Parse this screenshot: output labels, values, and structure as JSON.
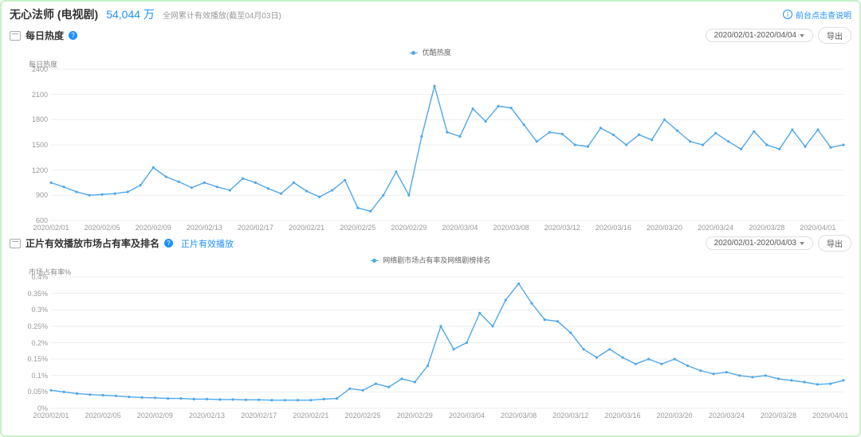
{
  "header": {
    "title": "无心法师 (电视剧)",
    "count": "54,044 万",
    "subtitle": "全网累计有效播放(截至04月03日)",
    "note_link": "前台点击查说明"
  },
  "sections": [
    {
      "icon": "monitor",
      "title": "每日热度",
      "help": "?",
      "extra_link": null,
      "date_range": "2020/02/01-2020/04/04",
      "export_label": "导出",
      "legend": "优酷热度",
      "y_title": "每日热度",
      "chart": {
        "type": "line",
        "color": "#4fa8ea",
        "background": "#ffffff",
        "grid_color": "#eeeeee",
        "series_width": 1.4,
        "marker": "circle",
        "ylim": [
          600,
          2400
        ],
        "ytick_step": 300,
        "yticks": [
          600,
          900,
          1200,
          1500,
          1800,
          2100,
          2400
        ],
        "x_labels": [
          "2020/02/01",
          "2020/02/05",
          "2020/02/09",
          "2020/02/13",
          "2020/02/17",
          "2020/02/21",
          "2020/02/25",
          "2020/02/29",
          "2020/03/04",
          "2020/03/08",
          "2020/03/12",
          "2020/03/16",
          "2020/03/20",
          "2020/03/24",
          "2020/03/28",
          "2020/04/01"
        ],
        "x_step_days": 4,
        "values": [
          1050,
          1000,
          940,
          900,
          910,
          920,
          940,
          1020,
          1230,
          1120,
          1060,
          990,
          1050,
          1000,
          960,
          1100,
          1050,
          980,
          920,
          1050,
          950,
          880,
          960,
          1080,
          750,
          710,
          900,
          1180,
          900,
          1600,
          2200,
          1650,
          1600,
          1930,
          1780,
          1960,
          1940,
          1740,
          1540,
          1650,
          1630,
          1500,
          1480,
          1700,
          1620,
          1500,
          1620,
          1560,
          1800,
          1670,
          1540,
          1500,
          1640,
          1540,
          1450,
          1660,
          1500,
          1450,
          1680,
          1480,
          1680,
          1470,
          1500
        ]
      }
    },
    {
      "icon": "monitor",
      "title": "正片有效播放市场占有率及排名",
      "help": "?",
      "extra_link": "正片有效播放",
      "date_range": "2020/02/01-2020/04/03",
      "export_label": "导出",
      "legend": "网络剧市场占有率及网络剧榜排名",
      "y_title": "市场占有率%",
      "chart": {
        "type": "line",
        "color": "#4fa8ea",
        "background": "#ffffff",
        "grid_color": "#eeeeee",
        "series_width": 1.4,
        "marker": "circle",
        "ylim": [
          0,
          0.4
        ],
        "ytick_step": 0.05,
        "yticks": [
          0,
          0.05,
          0.1,
          0.15,
          0.2,
          0.25,
          0.3,
          0.35,
          0.4
        ],
        "y_suffix": "%",
        "x_labels": [
          "2020/02/01",
          "2020/02/05",
          "2020/02/09",
          "2020/02/13",
          "2020/02/17",
          "2020/02/21",
          "2020/02/25",
          "2020/02/29",
          "2020/03/04",
          "2020/03/08",
          "2020/03/12",
          "2020/03/16",
          "2020/03/20",
          "2020/03/24",
          "2020/03/28",
          "2020/04/01"
        ],
        "x_step_days": 4,
        "values": [
          0.055,
          0.05,
          0.045,
          0.042,
          0.04,
          0.038,
          0.035,
          0.033,
          0.032,
          0.03,
          0.03,
          0.028,
          0.028,
          0.027,
          0.027,
          0.026,
          0.026,
          0.025,
          0.025,
          0.025,
          0.025,
          0.028,
          0.03,
          0.06,
          0.055,
          0.075,
          0.065,
          0.09,
          0.08,
          0.13,
          0.25,
          0.18,
          0.2,
          0.29,
          0.25,
          0.33,
          0.38,
          0.32,
          0.27,
          0.265,
          0.23,
          0.18,
          0.155,
          0.18,
          0.155,
          0.135,
          0.15,
          0.135,
          0.15,
          0.13,
          0.115,
          0.105,
          0.11,
          0.1,
          0.095,
          0.1,
          0.09,
          0.085,
          0.08,
          0.073,
          0.075,
          0.085
        ]
      }
    }
  ],
  "style": {
    "page_border": "#c8f0c8",
    "link_color": "#1e90ff",
    "text_muted": "#999999",
    "label_fontsize": 9
  }
}
